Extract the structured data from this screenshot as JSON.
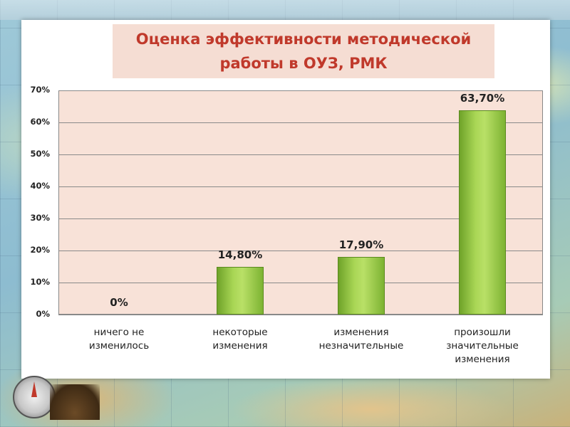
{
  "slide": {
    "title_line1": "Оценка эффективности методической",
    "title_line2": "работы в ОУЗ, РМК"
  },
  "colors": {
    "title": "#c0392b",
    "plot_bg": "#f8e2d8",
    "bar": "#8cc63f"
  },
  "chart_data": {
    "type": "bar",
    "title": "Оценка эффективности методической работы в ОУЗ, РМК",
    "categories": [
      [
        "ничего не",
        "изменилось"
      ],
      [
        "некоторые",
        "изменения"
      ],
      [
        "изменения",
        "незначительные"
      ],
      [
        "произошли",
        "значительные",
        "изменения"
      ]
    ],
    "values": [
      0,
      14.8,
      17.9,
      63.7
    ],
    "value_labels": [
      "0%",
      "14,80%",
      "17,90%",
      "63,70%"
    ],
    "y_ticks": [
      "0%",
      "10%",
      "20%",
      "30%",
      "40%",
      "50%",
      "60%",
      "70%"
    ],
    "ylim": [
      0,
      70
    ],
    "grid": true,
    "legend": "none"
  }
}
